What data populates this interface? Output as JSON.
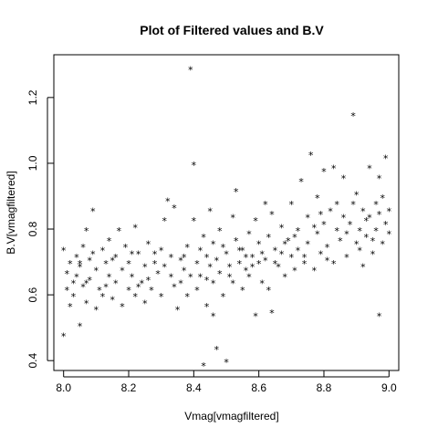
{
  "chart_data": {
    "type": "scatter",
    "title": "Plot of Filtered values and B.V",
    "xlabel": "Vmag[vmagfiltered]",
    "ylabel": "B.V[vmagfiltered]",
    "xlim": [
      7.97,
      9.03
    ],
    "ylim": [
      0.37,
      1.33
    ],
    "xticks": [
      "8.0",
      "8.2",
      "8.4",
      "8.6",
      "8.8",
      "9.0"
    ],
    "xtick_values": [
      8.0,
      8.2,
      8.4,
      8.6,
      8.8,
      9.0
    ],
    "yticks": [
      "0.4",
      "0.6",
      "0.8",
      "1.0",
      "1.2"
    ],
    "ytick_values": [
      0.4,
      0.6,
      0.8,
      1.0,
      1.2
    ],
    "marker": "*",
    "grid": false,
    "points": [
      [
        8.0,
        0.48
      ],
      [
        8.0,
        0.74
      ],
      [
        8.01,
        0.62
      ],
      [
        8.01,
        0.67
      ],
      [
        8.02,
        0.57
      ],
      [
        8.02,
        0.7
      ],
      [
        8.03,
        0.64
      ],
      [
        8.03,
        0.6
      ],
      [
        8.04,
        0.72
      ],
      [
        8.04,
        0.66
      ],
      [
        8.05,
        0.51
      ],
      [
        8.05,
        0.69
      ],
      [
        8.06,
        0.75
      ],
      [
        8.06,
        0.63
      ],
      [
        8.07,
        0.8
      ],
      [
        8.07,
        0.58
      ],
      [
        8.08,
        0.71
      ],
      [
        8.08,
        0.65
      ],
      [
        8.09,
        0.86
      ],
      [
        8.09,
        0.73
      ],
      [
        8.1,
        0.56
      ],
      [
        8.1,
        0.68
      ],
      [
        8.11,
        0.62
      ],
      [
        8.12,
        0.74
      ],
      [
        8.12,
        0.6
      ],
      [
        8.13,
        0.7
      ],
      [
        8.14,
        0.66
      ],
      [
        8.14,
        0.77
      ],
      [
        8.15,
        0.59
      ],
      [
        8.16,
        0.72
      ],
      [
        8.16,
        0.64
      ],
      [
        8.17,
        0.8
      ],
      [
        8.18,
        0.68
      ],
      [
        8.18,
        0.57
      ],
      [
        8.19,
        0.75
      ],
      [
        8.2,
        0.62
      ],
      [
        8.2,
        0.7
      ],
      [
        8.21,
        0.66
      ],
      [
        8.22,
        0.81
      ],
      [
        8.22,
        0.6
      ],
      [
        8.23,
        0.73
      ],
      [
        8.24,
        0.64
      ],
      [
        8.25,
        0.69
      ],
      [
        8.25,
        0.58
      ],
      [
        8.26,
        0.76
      ],
      [
        8.27,
        0.62
      ],
      [
        8.28,
        0.7
      ],
      [
        8.29,
        0.67
      ],
      [
        8.3,
        0.74
      ],
      [
        8.3,
        0.6
      ],
      [
        8.31,
        0.83
      ],
      [
        8.32,
        0.89
      ],
      [
        8.33,
        0.66
      ],
      [
        8.33,
        0.72
      ],
      [
        8.34,
        0.87
      ],
      [
        8.35,
        0.56
      ],
      [
        8.36,
        0.64
      ],
      [
        8.36,
        0.71
      ],
      [
        8.37,
        0.68
      ],
      [
        8.38,
        0.75
      ],
      [
        8.38,
        0.6
      ],
      [
        8.39,
        1.29
      ],
      [
        8.4,
        1.0
      ],
      [
        8.4,
        0.83
      ],
      [
        8.41,
        0.7
      ],
      [
        8.41,
        0.62
      ],
      [
        8.42,
        0.66
      ],
      [
        8.42,
        0.74
      ],
      [
        8.43,
        0.39
      ],
      [
        8.43,
        0.78
      ],
      [
        8.44,
        0.57
      ],
      [
        8.44,
        0.72
      ],
      [
        8.45,
        0.69
      ],
      [
        8.45,
        0.86
      ],
      [
        8.46,
        0.54
      ],
      [
        8.46,
        0.64
      ],
      [
        8.47,
        0.44
      ],
      [
        8.47,
        0.71
      ],
      [
        8.48,
        0.8
      ],
      [
        8.48,
        0.67
      ],
      [
        8.49,
        0.6
      ],
      [
        8.49,
        0.75
      ],
      [
        8.5,
        0.4
      ],
      [
        8.5,
        0.73
      ],
      [
        8.51,
        0.69
      ],
      [
        8.52,
        0.84
      ],
      [
        8.52,
        0.64
      ],
      [
        8.53,
        0.77
      ],
      [
        8.53,
        0.92
      ],
      [
        8.54,
        0.7
      ],
      [
        8.55,
        0.62
      ],
      [
        8.55,
        0.74
      ],
      [
        8.56,
        0.68
      ],
      [
        8.57,
        0.79
      ],
      [
        8.57,
        0.66
      ],
      [
        8.58,
        0.72
      ],
      [
        8.59,
        0.83
      ],
      [
        8.59,
        0.54
      ],
      [
        8.6,
        0.7
      ],
      [
        8.6,
        0.76
      ],
      [
        8.61,
        0.64
      ],
      [
        8.62,
        0.88
      ],
      [
        8.62,
        0.71
      ],
      [
        8.63,
        0.78
      ],
      [
        8.63,
        0.62
      ],
      [
        8.64,
        0.85
      ],
      [
        8.64,
        0.55
      ],
      [
        8.65,
        0.74
      ],
      [
        8.66,
        0.69
      ],
      [
        8.67,
        0.81
      ],
      [
        8.67,
        0.73
      ],
      [
        8.68,
        0.66
      ],
      [
        8.69,
        0.77
      ],
      [
        8.7,
        0.72
      ],
      [
        8.7,
        0.88
      ],
      [
        8.71,
        0.68
      ],
      [
        8.72,
        0.8
      ],
      [
        8.72,
        0.74
      ],
      [
        8.73,
        0.95
      ],
      [
        8.74,
        0.7
      ],
      [
        8.75,
        0.84
      ],
      [
        8.75,
        0.76
      ],
      [
        8.76,
        1.03
      ],
      [
        8.77,
        0.68
      ],
      [
        8.78,
        0.9
      ],
      [
        8.78,
        0.79
      ],
      [
        8.79,
        0.73
      ],
      [
        8.8,
        0.98
      ],
      [
        8.8,
        0.82
      ],
      [
        8.81,
        0.75
      ],
      [
        8.82,
        0.86
      ],
      [
        8.83,
        0.99
      ],
      [
        8.83,
        0.7
      ],
      [
        8.84,
        0.8
      ],
      [
        8.85,
        0.77
      ],
      [
        8.86,
        0.96
      ],
      [
        8.86,
        0.84
      ],
      [
        8.87,
        0.72
      ],
      [
        8.88,
        0.82
      ],
      [
        8.89,
        1.15
      ],
      [
        8.89,
        0.88
      ],
      [
        8.9,
        0.76
      ],
      [
        8.9,
        0.91
      ],
      [
        8.91,
        0.8
      ],
      [
        8.92,
        0.86
      ],
      [
        8.92,
        0.69
      ],
      [
        8.93,
        0.78
      ],
      [
        8.94,
        0.84
      ],
      [
        8.94,
        0.99
      ],
      [
        8.95,
        0.73
      ],
      [
        8.96,
        0.88
      ],
      [
        8.96,
        0.8
      ],
      [
        8.97,
        0.54
      ],
      [
        8.97,
        0.96
      ],
      [
        8.98,
        0.76
      ],
      [
        8.98,
        0.9
      ],
      [
        8.99,
        1.02
      ],
      [
        8.99,
        0.82
      ],
      [
        9.0,
        0.79
      ],
      [
        9.0,
        0.86
      ],
      [
        8.05,
        0.7
      ],
      [
        8.07,
        0.64
      ],
      [
        8.13,
        0.63
      ],
      [
        8.15,
        0.71
      ],
      [
        8.21,
        0.73
      ],
      [
        8.23,
        0.63
      ],
      [
        8.26,
        0.65
      ],
      [
        8.28,
        0.73
      ],
      [
        8.31,
        0.69
      ],
      [
        8.34,
        0.63
      ],
      [
        8.37,
        0.72
      ],
      [
        8.39,
        0.66
      ],
      [
        8.44,
        0.65
      ],
      [
        8.46,
        0.76
      ],
      [
        8.51,
        0.66
      ],
      [
        8.54,
        0.74
      ],
      [
        8.56,
        0.72
      ],
      [
        8.58,
        0.69
      ],
      [
        8.61,
        0.73
      ],
      [
        8.65,
        0.7
      ],
      [
        8.68,
        0.76
      ],
      [
        8.71,
        0.78
      ],
      [
        8.74,
        0.72
      ],
      [
        8.77,
        0.81
      ],
      [
        8.79,
        0.85
      ],
      [
        8.81,
        0.71
      ],
      [
        8.84,
        0.88
      ],
      [
        8.87,
        0.79
      ],
      [
        8.91,
        0.74
      ],
      [
        8.93,
        0.83
      ],
      [
        8.95,
        0.77
      ],
      [
        8.97,
        0.85
      ]
    ]
  }
}
